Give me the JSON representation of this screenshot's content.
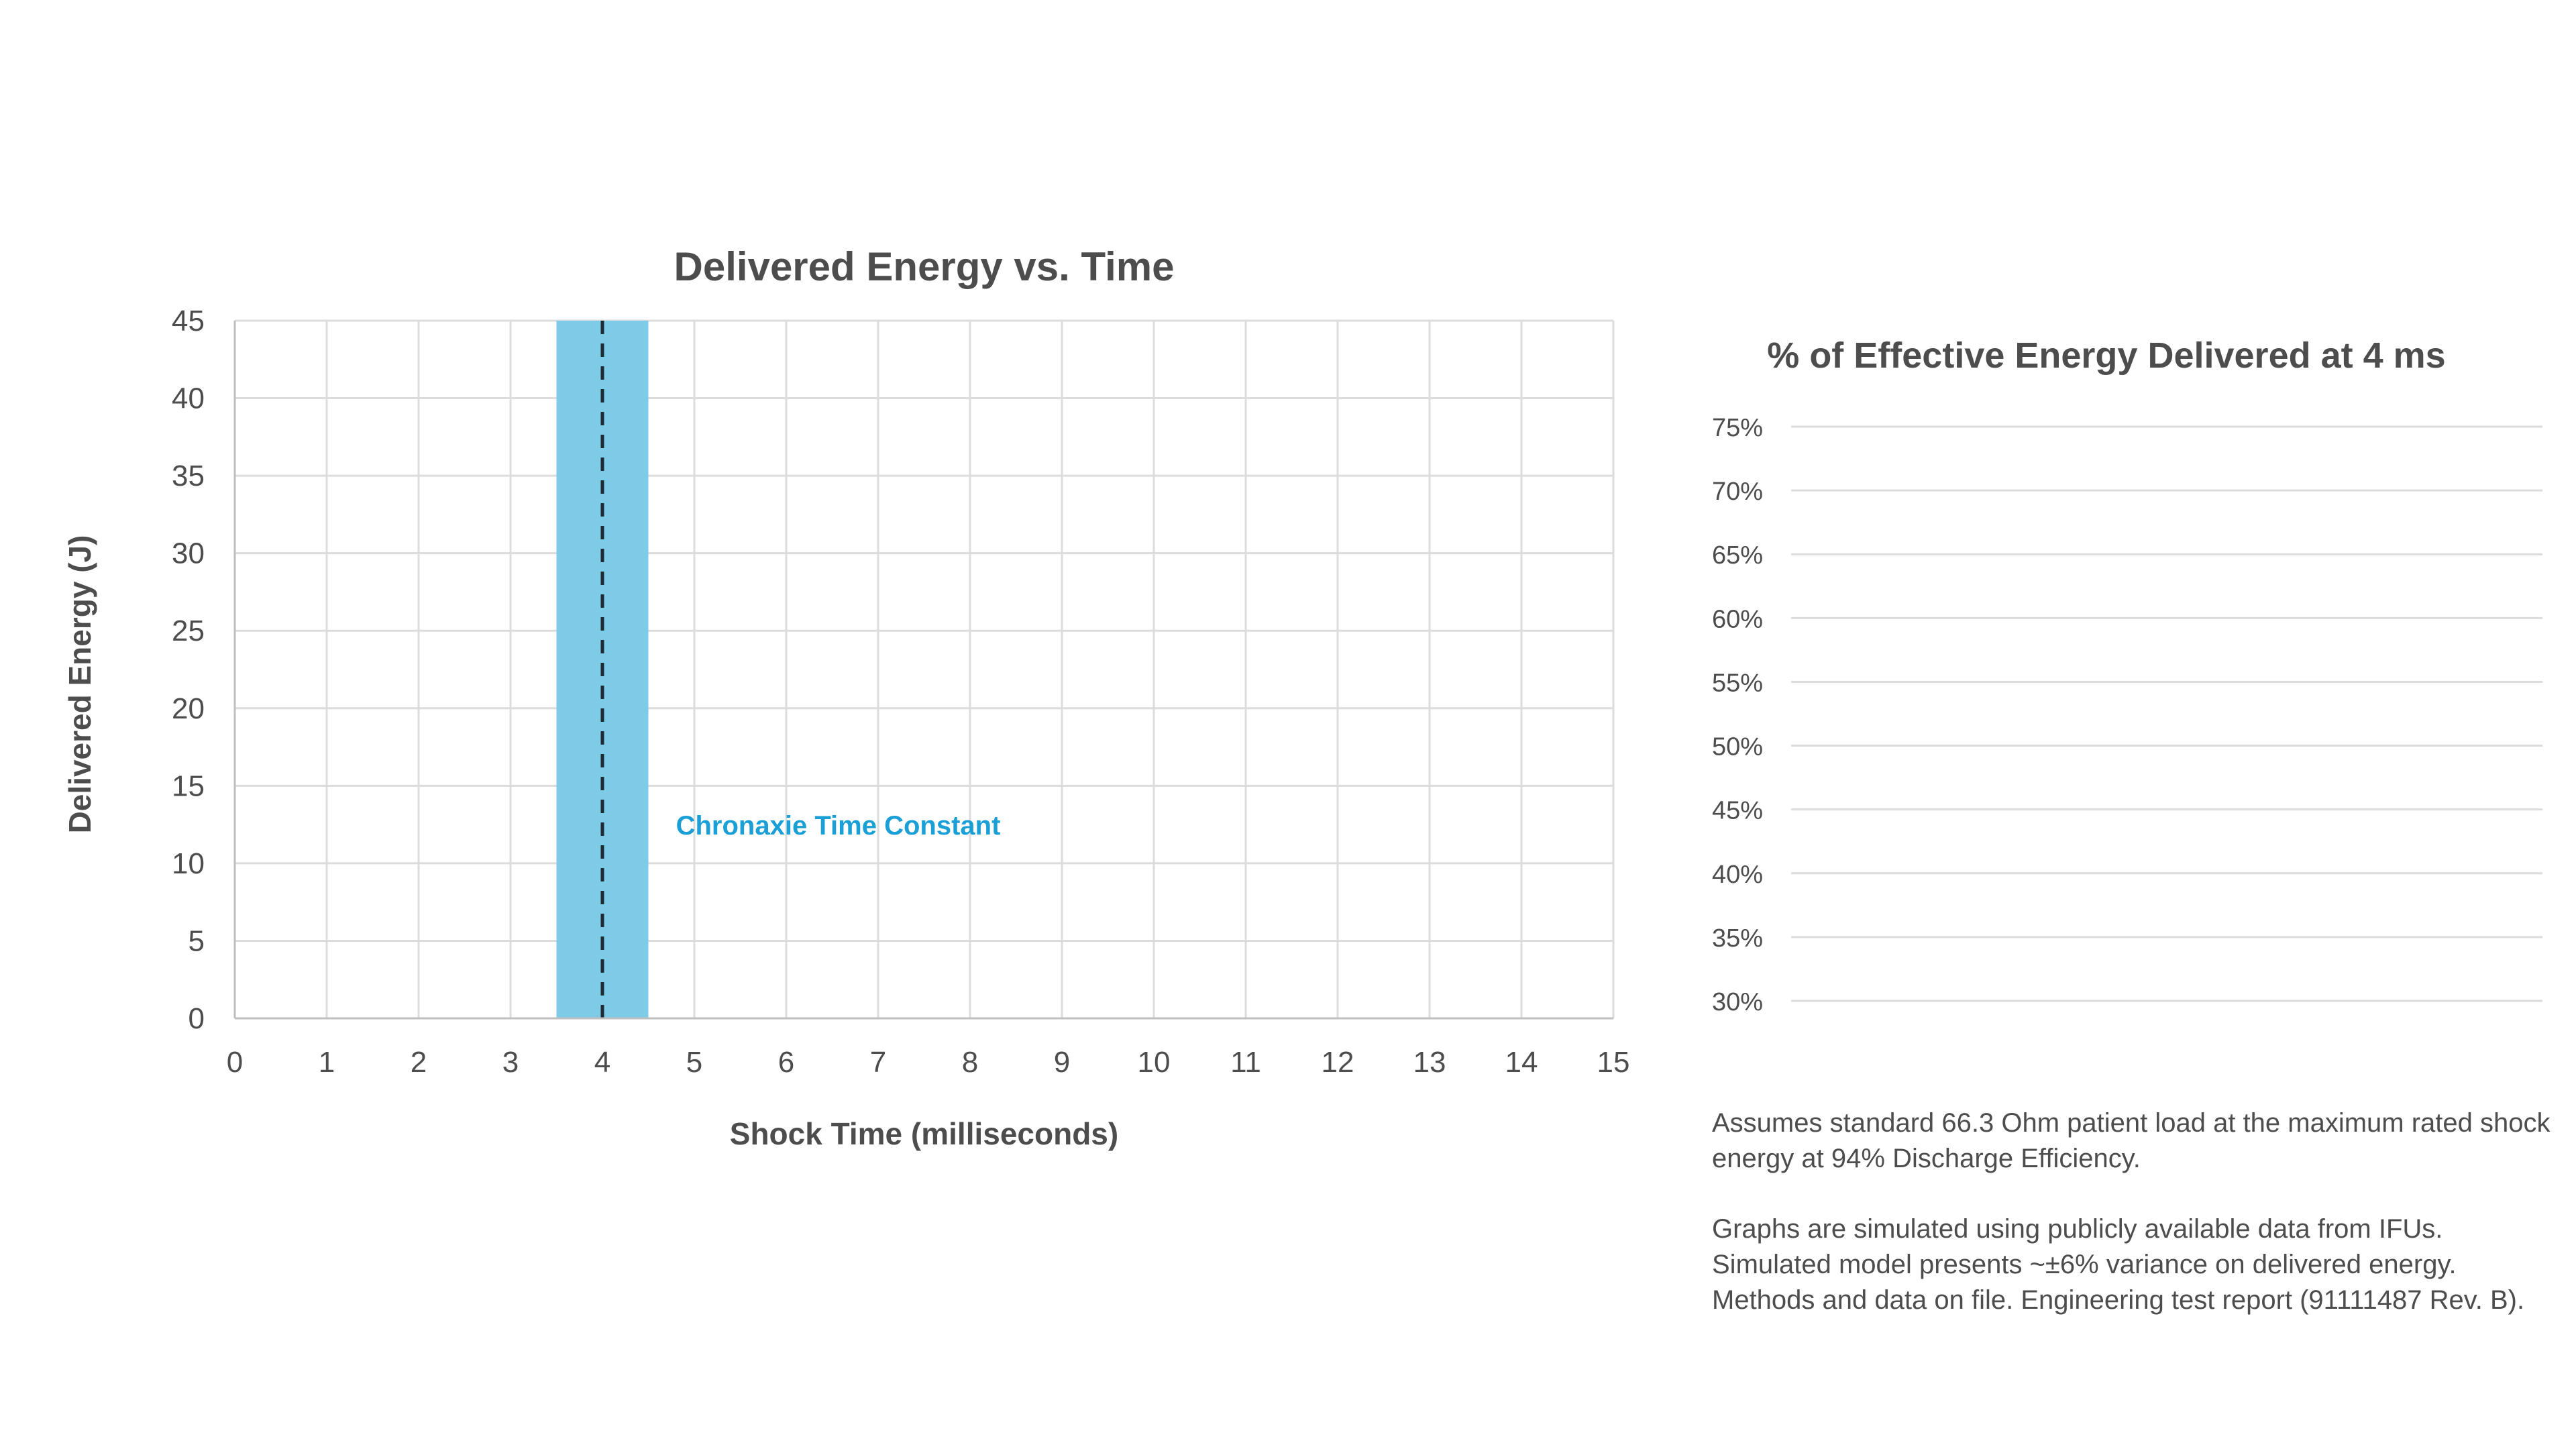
{
  "chart_data": [
    {
      "type": "line",
      "title": "Delivered Energy vs. Time",
      "xlabel": "Shock Time (milliseconds)",
      "ylabel": "Delivered Energy (J)",
      "xlim": [
        0,
        15
      ],
      "ylim": [
        0,
        45
      ],
      "x_ticks": [
        "0",
        "1",
        "2",
        "3",
        "4",
        "5",
        "6",
        "7",
        "8",
        "9",
        "10",
        "11",
        "12",
        "13",
        "14",
        "15"
      ],
      "y_ticks": [
        "0",
        "5",
        "10",
        "15",
        "20",
        "25",
        "30",
        "35",
        "40",
        "45"
      ],
      "grid": true,
      "series": [],
      "annotation": {
        "label": "Chronaxie Time Constant",
        "band": [
          3.5,
          4.5
        ],
        "line_x": 4,
        "label_position": [
          4.8,
          12.5
        ],
        "band_color": "#7ecbe8",
        "label_color": "#1a9fd6"
      }
    },
    {
      "type": "bar",
      "title": "% of Effective Energy Delivered at 4 ms",
      "ylim": [
        30,
        75
      ],
      "y_ticks": [
        "30%",
        "35%",
        "40%",
        "45%",
        "50%",
        "55%",
        "60%",
        "65%",
        "70%",
        "75%"
      ],
      "grid": true,
      "categories": [],
      "series": []
    }
  ],
  "notes": [
    "Assumes standard 66.3 Ohm patient load at the maximum rated shock energy at 94% Discharge Efficiency.",
    "Graphs are simulated using publicly available data from IFUs. Simulated model presents ~±6% variance on delivered energy. Methods and data on file. Engineering test report (91111487 Rev. B)."
  ],
  "colors": {
    "text": "#4d4d4d",
    "grid": "#dcdcdc",
    "axis": "#bfbfbf"
  }
}
